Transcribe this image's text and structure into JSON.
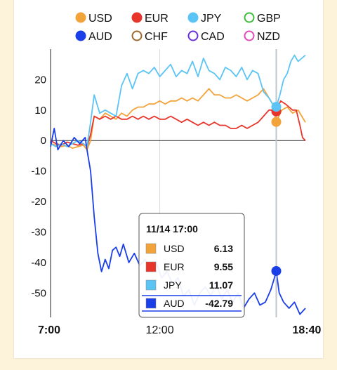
{
  "chart_data": {
    "type": "line",
    "x_start": "7:00",
    "x_end": "18:40",
    "xticks": [
      {
        "label": "7:00",
        "t": 0,
        "bold": true
      },
      {
        "label": "12:00",
        "t": 300,
        "bold": false
      },
      {
        "label": "18:40",
        "t": 700,
        "bold": true
      }
    ],
    "yticks": [
      20,
      10,
      0,
      -10,
      -20,
      -30,
      -40,
      -50
    ],
    "ylim": [
      -58,
      30
    ],
    "xlim_minutes": [
      0,
      700
    ],
    "cursor_t": 620,
    "legend": [
      {
        "name": "USD",
        "color": "#f2a33a",
        "filled": true
      },
      {
        "name": "EUR",
        "color": "#e8352b",
        "filled": true
      },
      {
        "name": "JPY",
        "color": "#5bc4f5",
        "filled": true
      },
      {
        "name": "GBP",
        "color": "#3dbb3d",
        "filled": false
      },
      {
        "name": "AUD",
        "color": "#1a3ee8",
        "filled": true
      },
      {
        "name": "CHF",
        "color": "#9b6a2c",
        "filled": false
      },
      {
        "name": "CAD",
        "color": "#6a2fd6",
        "filled": false
      },
      {
        "name": "NZD",
        "color": "#e24ab8",
        "filled": false
      }
    ],
    "series": [
      {
        "name": "USD",
        "color": "#f2a33a",
        "points": [
          [
            0,
            -1
          ],
          [
            15,
            -1.5
          ],
          [
            30,
            -2
          ],
          [
            45,
            -1.5
          ],
          [
            60,
            -2.5
          ],
          [
            75,
            -2
          ],
          [
            90,
            -1.5
          ],
          [
            100,
            -3
          ],
          [
            110,
            0
          ],
          [
            120,
            8
          ],
          [
            135,
            7
          ],
          [
            150,
            9
          ],
          [
            165,
            8
          ],
          [
            180,
            7
          ],
          [
            195,
            9
          ],
          [
            210,
            8
          ],
          [
            225,
            10
          ],
          [
            240,
            11
          ],
          [
            255,
            11
          ],
          [
            270,
            12
          ],
          [
            285,
            12
          ],
          [
            300,
            13
          ],
          [
            315,
            12
          ],
          [
            330,
            13
          ],
          [
            345,
            13
          ],
          [
            360,
            14
          ],
          [
            375,
            13
          ],
          [
            390,
            14
          ],
          [
            405,
            13
          ],
          [
            420,
            15
          ],
          [
            435,
            17
          ],
          [
            450,
            15
          ],
          [
            465,
            15
          ],
          [
            480,
            14
          ],
          [
            495,
            14
          ],
          [
            510,
            15
          ],
          [
            525,
            14
          ],
          [
            540,
            13
          ],
          [
            555,
            14
          ],
          [
            570,
            15
          ],
          [
            585,
            17
          ],
          [
            600,
            14
          ],
          [
            610,
            12
          ],
          [
            620,
            6.13
          ],
          [
            635,
            10
          ],
          [
            650,
            11
          ],
          [
            665,
            9
          ],
          [
            680,
            10
          ],
          [
            690,
            8
          ],
          [
            700,
            6
          ]
        ]
      },
      {
        "name": "EUR",
        "color": "#e8352b",
        "points": [
          [
            0,
            0
          ],
          [
            15,
            -1
          ],
          [
            30,
            -1.5
          ],
          [
            45,
            -0.5
          ],
          [
            60,
            -1
          ],
          [
            75,
            -1.5
          ],
          [
            90,
            -1
          ],
          [
            100,
            -2
          ],
          [
            110,
            2
          ],
          [
            120,
            8
          ],
          [
            135,
            7
          ],
          [
            150,
            8
          ],
          [
            165,
            7
          ],
          [
            180,
            8
          ],
          [
            195,
            7
          ],
          [
            210,
            7
          ],
          [
            225,
            8
          ],
          [
            240,
            7
          ],
          [
            255,
            8
          ],
          [
            270,
            7
          ],
          [
            285,
            8
          ],
          [
            300,
            7
          ],
          [
            315,
            7
          ],
          [
            330,
            8
          ],
          [
            345,
            7
          ],
          [
            360,
            6
          ],
          [
            375,
            7
          ],
          [
            390,
            6
          ],
          [
            405,
            5
          ],
          [
            420,
            6
          ],
          [
            435,
            5
          ],
          [
            450,
            6
          ],
          [
            465,
            5
          ],
          [
            480,
            5
          ],
          [
            495,
            4
          ],
          [
            510,
            4
          ],
          [
            525,
            5
          ],
          [
            540,
            4
          ],
          [
            555,
            5
          ],
          [
            570,
            6
          ],
          [
            585,
            8
          ],
          [
            600,
            10
          ],
          [
            610,
            10
          ],
          [
            620,
            9.55
          ],
          [
            632,
            13
          ],
          [
            645,
            12
          ],
          [
            655,
            11
          ],
          [
            665,
            10
          ],
          [
            675,
            10
          ],
          [
            685,
            5
          ],
          [
            692,
            1
          ],
          [
            700,
            0
          ]
        ]
      },
      {
        "name": "JPY",
        "color": "#5bc4f5",
        "points": [
          [
            0,
            -1
          ],
          [
            15,
            -2
          ],
          [
            30,
            -1
          ],
          [
            45,
            -2
          ],
          [
            60,
            -1
          ],
          [
            75,
            0
          ],
          [
            90,
            -1
          ],
          [
            100,
            -2
          ],
          [
            110,
            6
          ],
          [
            120,
            15
          ],
          [
            135,
            9
          ],
          [
            150,
            10
          ],
          [
            165,
            9
          ],
          [
            180,
            8
          ],
          [
            195,
            18
          ],
          [
            210,
            22
          ],
          [
            225,
            17
          ],
          [
            240,
            22
          ],
          [
            255,
            23
          ],
          [
            270,
            22
          ],
          [
            285,
            24
          ],
          [
            300,
            21
          ],
          [
            315,
            23
          ],
          [
            330,
            25
          ],
          [
            345,
            21
          ],
          [
            360,
            23
          ],
          [
            375,
            22
          ],
          [
            390,
            26
          ],
          [
            405,
            21
          ],
          [
            420,
            27
          ],
          [
            435,
            23
          ],
          [
            450,
            22
          ],
          [
            465,
            20
          ],
          [
            480,
            24
          ],
          [
            495,
            23
          ],
          [
            510,
            21
          ],
          [
            525,
            24
          ],
          [
            540,
            20
          ],
          [
            555,
            23
          ],
          [
            570,
            22
          ],
          [
            585,
            16
          ],
          [
            600,
            14
          ],
          [
            610,
            12
          ],
          [
            620,
            11.07
          ],
          [
            630,
            15
          ],
          [
            640,
            20
          ],
          [
            650,
            22
          ],
          [
            660,
            26
          ],
          [
            670,
            28
          ],
          [
            680,
            26
          ],
          [
            690,
            27
          ],
          [
            700,
            28
          ]
        ]
      },
      {
        "name": "AUD",
        "color": "#1a3ee8",
        "points": [
          [
            0,
            -2
          ],
          [
            10,
            4
          ],
          [
            20,
            -3
          ],
          [
            35,
            0
          ],
          [
            50,
            -2
          ],
          [
            65,
            1
          ],
          [
            80,
            -1
          ],
          [
            95,
            1
          ],
          [
            100,
            -3
          ],
          [
            110,
            -10
          ],
          [
            120,
            -25
          ],
          [
            130,
            -37
          ],
          [
            140,
            -43
          ],
          [
            150,
            -39
          ],
          [
            160,
            -42
          ],
          [
            170,
            -36
          ],
          [
            180,
            -35
          ],
          [
            190,
            -38
          ],
          [
            200,
            -34
          ],
          [
            215,
            -40
          ],
          [
            230,
            -37
          ],
          [
            245,
            -41
          ],
          [
            260,
            -39
          ],
          [
            275,
            -43
          ],
          [
            290,
            -40
          ],
          [
            305,
            -45
          ],
          [
            320,
            -43
          ],
          [
            335,
            -47
          ],
          [
            350,
            -45
          ],
          [
            365,
            -51
          ],
          [
            380,
            -49
          ],
          [
            395,
            -54
          ],
          [
            410,
            -50
          ],
          [
            425,
            -48
          ],
          [
            440,
            -51
          ],
          [
            455,
            -47
          ],
          [
            470,
            -52
          ],
          [
            485,
            -49
          ],
          [
            500,
            -53
          ],
          [
            515,
            -50
          ],
          [
            530,
            -55
          ],
          [
            545,
            -52
          ],
          [
            560,
            -50
          ],
          [
            575,
            -54
          ],
          [
            590,
            -53
          ],
          [
            605,
            -49
          ],
          [
            615,
            -45
          ],
          [
            620,
            -42.79
          ],
          [
            628,
            -50
          ],
          [
            640,
            -53
          ],
          [
            655,
            -55
          ],
          [
            670,
            -53
          ],
          [
            685,
            -57
          ],
          [
            700,
            -55
          ]
        ]
      }
    ],
    "tooltip": {
      "title": "11/14 17:00",
      "rows": [
        {
          "name": "USD",
          "value": "6.13",
          "color": "#f2a33a"
        },
        {
          "name": "EUR",
          "value": "9.55",
          "color": "#e8352b"
        },
        {
          "name": "JPY",
          "value": "11.07",
          "color": "#5bc4f5"
        },
        {
          "name": "AUD",
          "value": "-42.79",
          "color": "#1a3ee8"
        }
      ]
    }
  }
}
